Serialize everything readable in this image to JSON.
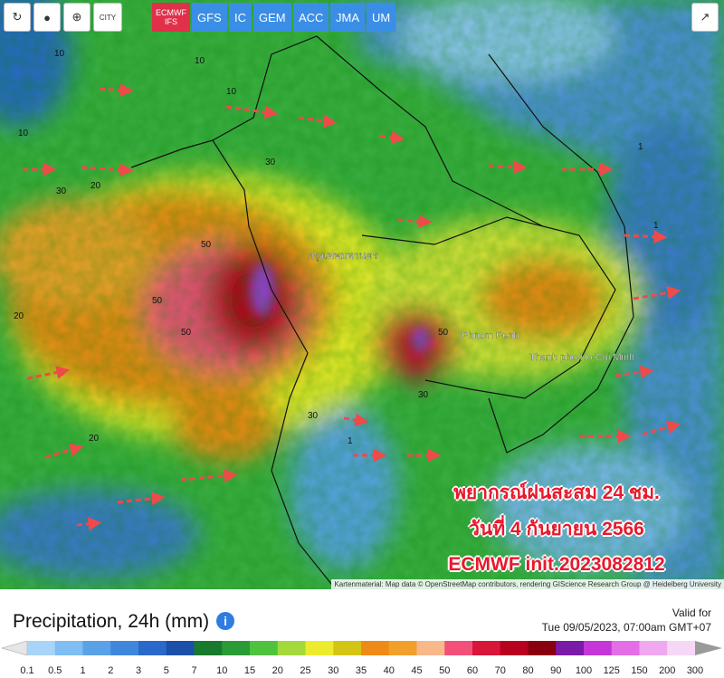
{
  "toolbar": {
    "city": "CITY",
    "models": [
      {
        "label": "ECMWF IFS",
        "active": true
      },
      {
        "label": "GFS",
        "active": false
      },
      {
        "label": "IC",
        "active": false
      },
      {
        "label": "GEM",
        "active": false
      },
      {
        "label": "ACC",
        "active": false
      },
      {
        "label": "JMA",
        "active": false
      },
      {
        "label": "UM",
        "active": false
      }
    ]
  },
  "map": {
    "places": [
      "กรุงเทพมหานคร",
      "Phnom Penh",
      "Thanh pho Ho Chi Minh"
    ],
    "contour_labels": [
      10,
      10,
      10,
      10,
      20,
      20,
      20,
      30,
      30,
      50,
      50,
      50,
      50,
      30,
      30,
      1,
      1,
      1
    ],
    "overlay": [
      "พยากรณ์ฝนสะสม 24 ชม.",
      "วันที่ 4 กันยายน 2566",
      "ECMWF init.2023082812"
    ],
    "attribution": "Kartenmaterial: Map data © OpenStreetMap contributors, rendering GIScience Research Group @ Heidelberg University"
  },
  "footer": {
    "title": "Precipitation, 24h (mm)",
    "valid_label": "Valid for",
    "valid_time": "Tue 09/05/2023, 07:00am GMT+07"
  },
  "legend": {
    "ticks": [
      0.1,
      0.5,
      1,
      2,
      3,
      5,
      7,
      10,
      15,
      20,
      25,
      30,
      35,
      40,
      45,
      50,
      60,
      70,
      80,
      90,
      100,
      125,
      150,
      200,
      300
    ],
    "colors": [
      "#a8d4f7",
      "#7fbdf2",
      "#5aa2e8",
      "#3f86dd",
      "#2a68c9",
      "#1b4fa8",
      "#187a2c",
      "#2a9b36",
      "#4fc23e",
      "#a3d93a",
      "#ecec2c",
      "#d4c414",
      "#ef8a16",
      "#f2a02c",
      "#f7b98a",
      "#f2507a",
      "#d8163a",
      "#b8001f",
      "#8a0010",
      "#7a1aa8",
      "#c436d8",
      "#e46ee6",
      "#f0a8f0",
      "#f6d8f6"
    ],
    "below_color": "#e6e6e6",
    "above_color": "#9a9a9a"
  }
}
